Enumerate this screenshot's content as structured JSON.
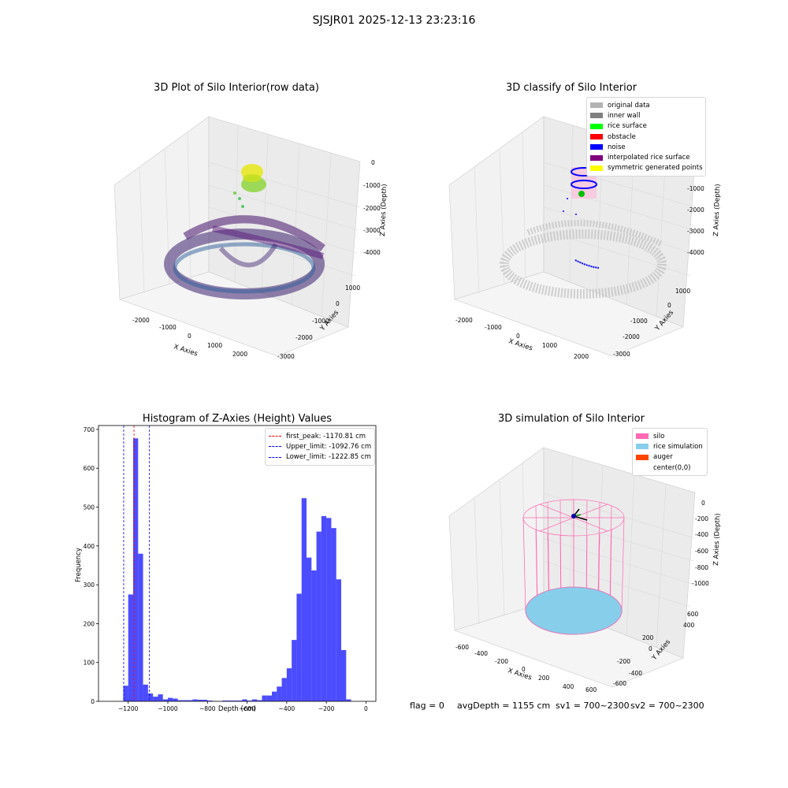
{
  "figure": {
    "suptitle": "SJSJR01 2025-12-13 23:23:16"
  },
  "panels": {
    "raw": {
      "title": "3D Plot of Silo Interior(row data)",
      "xlabel": "X Axies",
      "ylabel": "Y Axies",
      "zlabel": "Z Axies (Depth)",
      "xticks": [
        "-2000",
        "-1000",
        "0",
        "1000",
        "2000"
      ],
      "yticks": [
        "1000",
        "0",
        "-1000",
        "-2000",
        "-3000"
      ],
      "zticks": [
        "0",
        "-1000",
        "-2000",
        "-3000",
        "-4000"
      ]
    },
    "classify": {
      "title": "3D classify of Silo Interior",
      "xlabel": "X Axies",
      "ylabel": "Y Axies",
      "zlabel": "Z Axies (Depth)",
      "xticks": [
        "-2000",
        "-1000",
        "0",
        "1000",
        "2000"
      ],
      "yticks": [
        "1000",
        "0",
        "-1000",
        "-2000",
        "-3000"
      ],
      "zticks": [
        "-1000",
        "-2000",
        "-3000",
        "-4000"
      ],
      "legend": [
        {
          "label": "original data",
          "color": "#b3b3b3"
        },
        {
          "label": "inner wall",
          "color": "#808080"
        },
        {
          "label": "rice surface",
          "color": "#00ff00"
        },
        {
          "label": "obstacle",
          "color": "#ff0000"
        },
        {
          "label": "noise",
          "color": "#0000ff"
        },
        {
          "label": "interpolated rice surface",
          "color": "#800080"
        },
        {
          "label": "symmetric generated points",
          "color": "#ffff00"
        }
      ]
    },
    "simulation": {
      "title": "3D simulation of Silo Interior",
      "xlabel": "X Axies",
      "ylabel": "Y Axies",
      "zlabel": "Z Axies (Depth)",
      "xticks": [
        "-600",
        "-400",
        "-200",
        "0",
        "200",
        "400",
        "600"
      ],
      "yticks": [
        "600",
        "400",
        "200",
        "0",
        "-200",
        "-400",
        "-600"
      ],
      "zticks": [
        "0",
        "-200",
        "-400",
        "-600",
        "-800",
        "-1000"
      ],
      "legend": [
        {
          "label": "silo",
          "color": "#ff69b4"
        },
        {
          "label": "rice simulation",
          "color": "#87ceeb"
        },
        {
          "label": "auger",
          "color": "#ff4500"
        },
        {
          "label": "center(0,0)",
          "color": "#ffffff"
        }
      ]
    }
  },
  "footer": {
    "flag": "flag = 0",
    "avg": "avgDepth = 1155 cm",
    "sv1": "sv1 = 700~2300",
    "sv2": "sv2 = 700~2300"
  },
  "colors": {
    "hist": "#0000ff",
    "peak": "#ff0000",
    "limit": "#0000ff"
  },
  "chart_data": {
    "type": "bar",
    "title": "Histogram of Z-Axies (Height) Values",
    "xlabel": "Depth (cm)",
    "ylabel": "Frequency",
    "xlim": [
      -1350,
      50
    ],
    "ylim": [
      0,
      710
    ],
    "xticks": [
      -1200,
      -1000,
      -800,
      -600,
      -400,
      -200,
      0
    ],
    "yticks": [
      0,
      100,
      200,
      300,
      400,
      500,
      600,
      700
    ],
    "bin_width": 25,
    "bins_start": [
      -1250,
      -1225,
      -1200,
      -1175,
      -1150,
      -1125,
      -1100,
      -1075,
      -1050,
      -1025,
      -1000,
      -975,
      -950,
      -925,
      -900,
      -875,
      -850,
      -825,
      -800,
      -775,
      -750,
      -725,
      -700,
      -675,
      -650,
      -625,
      -600,
      -575,
      -550,
      -525,
      -500,
      -475,
      -450,
      -425,
      -400,
      -375,
      -350,
      -325,
      -300,
      -275,
      -250,
      -225,
      -200,
      -175,
      -150,
      -125,
      -100,
      -75,
      -50,
      -25
    ],
    "values": [
      0,
      40,
      275,
      677,
      380,
      43,
      20,
      12,
      18,
      5,
      9,
      7,
      3,
      3,
      3,
      5,
      4,
      4,
      2,
      1,
      0,
      2,
      2,
      2,
      2,
      5,
      2,
      5,
      3,
      15,
      15,
      25,
      38,
      60,
      85,
      158,
      277,
      523,
      370,
      337,
      437,
      477,
      472,
      446,
      314,
      132,
      5,
      0,
      0,
      0
    ],
    "lines": [
      {
        "name": "first_peak: -1170.81 cm",
        "x": -1170.81,
        "color": "#ff0000"
      },
      {
        "name": "Upper_limit: -1092.76 cm",
        "x": -1092.76,
        "color": "#0000ff"
      },
      {
        "name": "Lower_limit: -1222.85 cm",
        "x": -1222.85,
        "color": "#0000ff"
      }
    ]
  }
}
